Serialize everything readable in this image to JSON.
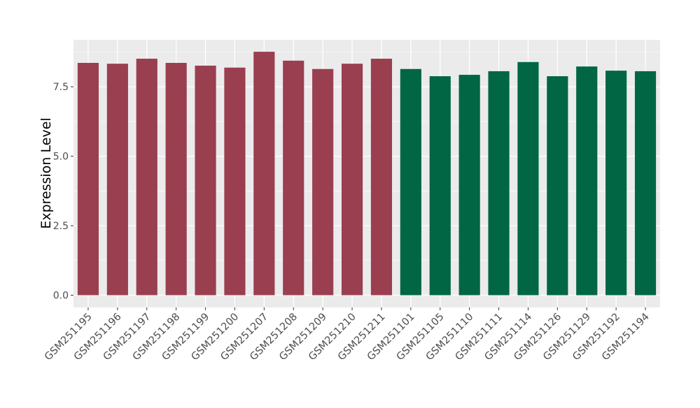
{
  "chart_data": {
    "type": "bar",
    "title": "",
    "xlabel": "",
    "ylabel": "Expression Level",
    "ylim": [
      -0.44,
      9.19
    ],
    "yticks": [
      0.0,
      2.5,
      5.0,
      7.5
    ],
    "ytick_labels": [
      "0.0",
      "2.5",
      "5.0",
      "7.5"
    ],
    "grid": true,
    "categories": [
      "GSM251195",
      "GSM251196",
      "GSM251197",
      "GSM251198",
      "GSM251199",
      "GSM251200",
      "GSM251207",
      "GSM251208",
      "GSM251209",
      "GSM251210",
      "GSM251211",
      "GSM251101",
      "GSM251105",
      "GSM251110",
      "GSM251111",
      "GSM251114",
      "GSM251126",
      "GSM251129",
      "GSM251192",
      "GSM251194"
    ],
    "values": [
      8.36,
      8.33,
      8.51,
      8.36,
      8.26,
      8.19,
      8.76,
      8.44,
      8.14,
      8.33,
      8.51,
      8.14,
      7.88,
      7.93,
      8.06,
      8.39,
      7.88,
      8.23,
      8.08,
      8.06
    ],
    "groups": [
      0,
      0,
      0,
      0,
      0,
      0,
      0,
      0,
      0,
      0,
      0,
      1,
      1,
      1,
      1,
      1,
      1,
      1,
      1,
      1
    ],
    "group_colors": [
      "#9a3f4f",
      "#006644"
    ],
    "panel_background": "#ebebeb",
    "grid_color": "#ffffff"
  }
}
